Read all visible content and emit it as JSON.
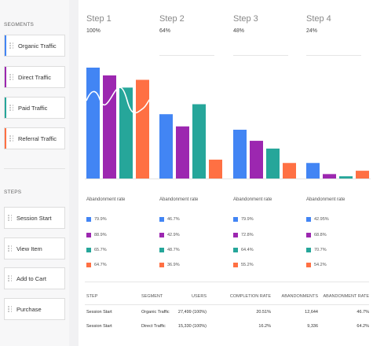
{
  "sidebar": {
    "segments_heading": "SEGMENTS",
    "segments": [
      {
        "label": "Organic Traffic",
        "color": "#4285f4"
      },
      {
        "label": "Direct Traffic",
        "color": "#9c27b0"
      },
      {
        "label": "Paid Traffic",
        "color": "#26a69a"
      },
      {
        "label": "Referral Traffic",
        "color": "#ff7043"
      }
    ],
    "steps_heading": "STEPS",
    "steps": [
      {
        "label": "Session Start"
      },
      {
        "label": "View Item"
      },
      {
        "label": "Add to Cart"
      },
      {
        "label": "Purchase"
      }
    ]
  },
  "funnel": {
    "steps": [
      {
        "title": "Step 1",
        "pct": "100%"
      },
      {
        "title": "Step 2",
        "pct": "64%"
      },
      {
        "title": "Step 3",
        "pct": "48%"
      },
      {
        "title": "Step 4",
        "pct": "24%"
      }
    ],
    "abandonment_label": "Abandonment rate",
    "abandonment": [
      [
        "79.9%",
        "88.9%",
        "65.7%",
        "64.7%"
      ],
      [
        "46.7%",
        "42.9%",
        "48.7%",
        "36.9%"
      ],
      [
        "79.9%",
        "72.8%",
        "64.4%",
        "55.2%"
      ],
      [
        "42.95%",
        "68.8%",
        "70.7%",
        "54.2%"
      ]
    ]
  },
  "chart_data": {
    "type": "bar",
    "categories": [
      "Step 1",
      "Step 2",
      "Step 3",
      "Step 4"
    ],
    "ylim": [
      0,
      100
    ],
    "series": [
      {
        "name": "Organic Traffic",
        "color": "#4285f4",
        "values": [
          100,
          58,
          44,
          14
        ]
      },
      {
        "name": "Direct Traffic",
        "color": "#9c27b0",
        "values": [
          93,
          47,
          34,
          4
        ]
      },
      {
        "name": "Paid Traffic",
        "color": "#26a69a",
        "values": [
          82,
          67,
          27,
          2
        ]
      },
      {
        "name": "Referral Traffic",
        "color": "#ff7043",
        "values": [
          89,
          17,
          14,
          7
        ]
      }
    ]
  },
  "table": {
    "headers": [
      "STEP",
      "SEGMENT",
      "USERS",
      "COMPLETION RATE",
      "ABANDONMENTS",
      "ABANDONMENT RATE"
    ],
    "rows": [
      [
        "Session Start",
        "Organic Traffic",
        "27,499 (100%)",
        "20.51%",
        "12,644",
        "46.7%"
      ],
      [
        "Session Start",
        "Direct Traffic",
        "15,330 (100%)",
        "16.2%",
        "9,336",
        "64.2%"
      ]
    ]
  }
}
